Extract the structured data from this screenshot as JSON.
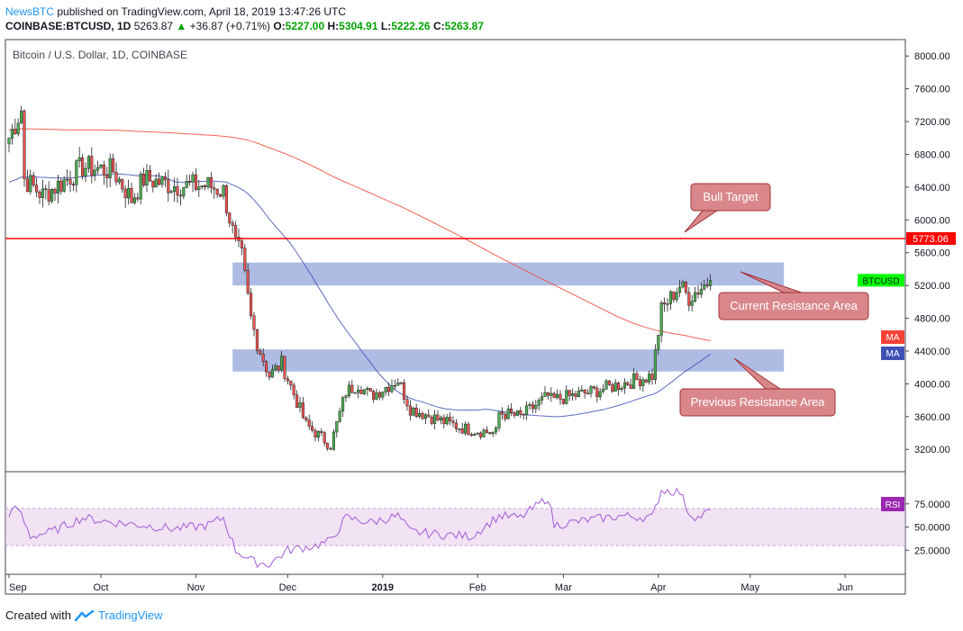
{
  "header": {
    "publisher": "NewsBTC",
    "published_text": "published on TradingView.com, April 18, 2019 13:47:26 UTC",
    "symbol_interval": "COINBASE:BTCUSD, 1D",
    "last": "5263.87",
    "change": "+36.87 (+0.71%)",
    "o_label": "O:",
    "o": "5227.00",
    "h_label": "H:",
    "h": "5304.91",
    "l_label": "L:",
    "l": "5222.26",
    "c_label": "C:",
    "c": "5263.87"
  },
  "footer": {
    "created_with": "Created with",
    "brand": "TradingView"
  },
  "colors": {
    "up": "#26a69a",
    "down": "#ef5350",
    "up_alt": "#4caf50",
    "ma_fast": "#3f51b5",
    "ma_slow": "#f44336",
    "zone": "#3f5fbf",
    "callout_fill": "#d9878b",
    "rsi": "#a15ad6",
    "level_line": "#ff0000"
  },
  "chart_data": {
    "type": "candlestick",
    "title": "Bitcoin / U.S. Dollar, 1D, COINBASE",
    "ylim": [
      2950,
      8200
    ],
    "yticks": [
      "8000.00",
      "7600.00",
      "7200.00",
      "6800.00",
      "6400.00",
      "6000.00",
      "5600.00",
      "5200.00",
      "4800.00",
      "4400.00",
      "4000.00",
      "3600.00",
      "3200.00"
    ],
    "xticks": [
      "Sep",
      "Oct",
      "Nov",
      "Dec",
      "2019",
      "Feb",
      "Mar",
      "Apr",
      "May",
      "Jun"
    ],
    "xstart": "2018-09-01",
    "ohlc_path": [
      [
        "2018-09-01",
        7000
      ],
      [
        "2018-09-05",
        7350
      ],
      [
        "2018-09-06",
        6500
      ],
      [
        "2018-09-12",
        6300
      ],
      [
        "2018-09-20",
        6500
      ],
      [
        "2018-09-25",
        6650
      ],
      [
        "2018-10-05",
        6600
      ],
      [
        "2018-10-11",
        6250
      ],
      [
        "2018-10-15",
        6500
      ],
      [
        "2018-10-25",
        6420
      ],
      [
        "2018-11-05",
        6420
      ],
      [
        "2018-11-10",
        6350
      ],
      [
        "2018-11-14",
        5700
      ],
      [
        "2018-11-16",
        5550
      ],
      [
        "2018-11-19",
        4800
      ],
      [
        "2018-11-21",
        4500
      ],
      [
        "2018-11-25",
        4100
      ],
      [
        "2018-11-29",
        4250
      ],
      [
        "2018-12-07",
        3500
      ],
      [
        "2018-12-15",
        3250
      ],
      [
        "2018-12-20",
        3900
      ],
      [
        "2018-12-24",
        4000
      ],
      [
        "2018-12-28",
        3850
      ],
      [
        "2019-01-06",
        4050
      ],
      [
        "2019-01-10",
        3700
      ],
      [
        "2019-01-20",
        3550
      ],
      [
        "2019-01-28",
        3450
      ],
      [
        "2019-02-07",
        3400
      ],
      [
        "2019-02-08",
        3650
      ],
      [
        "2019-02-15",
        3600
      ],
      [
        "2019-02-24",
        3850
      ],
      [
        "2019-02-25",
        3800
      ],
      [
        "2019-03-10",
        3900
      ],
      [
        "2019-03-20",
        4000
      ],
      [
        "2019-03-30",
        4100
      ],
      [
        "2019-04-02",
        4900
      ],
      [
        "2019-04-08",
        5200
      ],
      [
        "2019-04-11",
        5050
      ],
      [
        "2019-04-14",
        5150
      ],
      [
        "2019-04-18",
        5264
      ]
    ],
    "series": [
      {
        "values_note": "",
        "type": "sma",
        "style": "blue"
      },
      {
        "values_note": "",
        "type": "sma",
        "style": "red"
      }
    ],
    "level_line": {
      "value": 5773.06,
      "label": "5773.06"
    },
    "last_price_tag": "BTCUSD",
    "last_price_value": 5263.87,
    "ma_tags": [
      "MA",
      "MA"
    ],
    "zones": [
      {
        "low": 5200,
        "high": 5480,
        "from": "2018-11-13",
        "to": "2019-05-12"
      },
      {
        "low": 4150,
        "high": 4420,
        "from": "2018-11-13",
        "to": "2019-05-12"
      }
    ],
    "annotations": [
      {
        "text": "Bull Target"
      },
      {
        "text": "Current Resistance Area"
      },
      {
        "text": "Previous Resistance Area"
      }
    ],
    "rsi": {
      "label": "RSI",
      "yticks": [
        "75.0000",
        "50.0000",
        "25.0000"
      ],
      "band": [
        30,
        70
      ],
      "path": [
        [
          "2018-09-01",
          65
        ],
        [
          "2018-09-04",
          70
        ],
        [
          "2018-09-08",
          40
        ],
        [
          "2018-09-15",
          45
        ],
        [
          "2018-09-25",
          60
        ],
        [
          "2018-10-05",
          55
        ],
        [
          "2018-10-15",
          52
        ],
        [
          "2018-10-25",
          48
        ],
        [
          "2018-11-05",
          52
        ],
        [
          "2018-11-10",
          60
        ],
        [
          "2018-11-14",
          25
        ],
        [
          "2018-11-20",
          12
        ],
        [
          "2018-11-25",
          10
        ],
        [
          "2018-12-01",
          25
        ],
        [
          "2018-12-10",
          30
        ],
        [
          "2018-12-15",
          35
        ],
        [
          "2018-12-20",
          60
        ],
        [
          "2018-12-28",
          55
        ],
        [
          "2019-01-06",
          62
        ],
        [
          "2019-01-10",
          45
        ],
        [
          "2019-01-20",
          42
        ],
        [
          "2019-01-30",
          40
        ],
        [
          "2019-02-08",
          62
        ],
        [
          "2019-02-15",
          60
        ],
        [
          "2019-02-24",
          82
        ],
        [
          "2019-02-26",
          52
        ],
        [
          "2019-03-10",
          58
        ],
        [
          "2019-03-20",
          62
        ],
        [
          "2019-03-30",
          60
        ],
        [
          "2019-04-02",
          90
        ],
        [
          "2019-04-08",
          88
        ],
        [
          "2019-04-11",
          65
        ],
        [
          "2019-04-14",
          60
        ],
        [
          "2019-04-18",
          68
        ]
      ]
    }
  }
}
